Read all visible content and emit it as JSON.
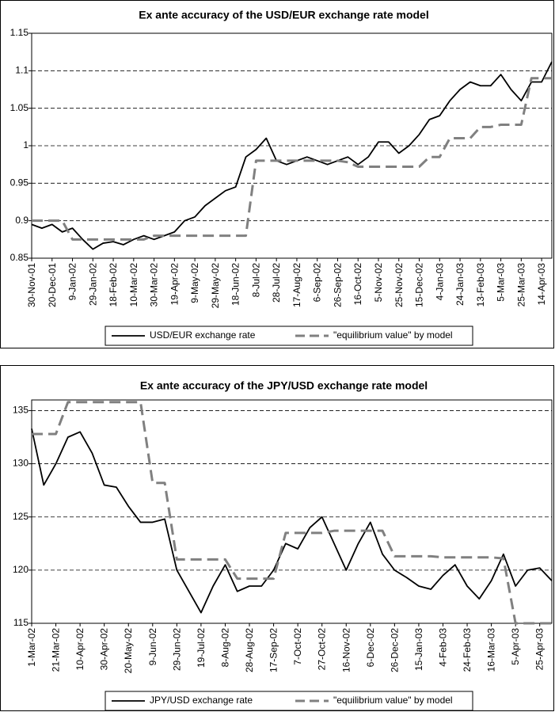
{
  "chart_data": [
    {
      "type": "line",
      "title": "Ex ante accuracy of the USD/EUR exchange rate model",
      "categories": [
        "30-Nov-01",
        null,
        "20-Dec-01",
        null,
        "9-Jan-02",
        null,
        "29-Jan-02",
        null,
        "18-Feb-02",
        null,
        "10-Mar-02",
        null,
        "30-Mar-02",
        null,
        "19-Apr-02",
        null,
        "9-May-02",
        null,
        "29-May-02",
        null,
        "18-Jun-02",
        null,
        "8-Jul-02",
        null,
        "28-Jul-02",
        null,
        "17-Aug-02",
        null,
        "6-Sep-02",
        null,
        "26-Sep-02",
        null,
        "16-Oct-02",
        null,
        "5-Nov-02",
        null,
        "25-Nov-02",
        null,
        "15-Dec-02",
        null,
        "4-Jan-03",
        null,
        "24-Jan-03",
        null,
        "13-Feb-03",
        null,
        "5-Mar-03",
        null,
        "25-Mar-03",
        null,
        "14-Apr-03",
        null
      ],
      "series": [
        {
          "name": "USD/EUR exchange rate",
          "color": "#000000",
          "dashed": false,
          "values": [
            0.895,
            0.89,
            0.895,
            0.885,
            0.89,
            0.875,
            0.862,
            0.87,
            0.872,
            0.868,
            0.875,
            0.88,
            0.875,
            0.88,
            0.885,
            0.9,
            0.905,
            0.92,
            0.93,
            0.94,
            0.945,
            0.985,
            0.995,
            1.01,
            0.98,
            0.975,
            0.98,
            0.985,
            0.98,
            0.975,
            0.98,
            0.985,
            0.975,
            0.985,
            1.005,
            1.005,
            0.99,
            1.0,
            1.015,
            1.035,
            1.04,
            1.06,
            1.075,
            1.085,
            1.08,
            1.08,
            1.095,
            1.075,
            1.06,
            1.085,
            1.085,
            1.112
          ]
        },
        {
          "name": "\"equilibrium value\" by model",
          "color": "#808080",
          "dashed": true,
          "values": [
            0.9,
            0.9,
            0.9,
            0.9,
            0.875,
            0.875,
            0.875,
            0.875,
            0.875,
            0.875,
            0.875,
            0.875,
            0.88,
            0.88,
            0.88,
            0.88,
            0.88,
            0.88,
            0.88,
            0.88,
            0.88,
            0.88,
            0.98,
            0.98,
            0.98,
            0.98,
            0.98,
            0.98,
            0.98,
            0.98,
            0.98,
            0.978,
            0.972,
            0.972,
            0.972,
            0.972,
            0.972,
            0.972,
            0.972,
            0.985,
            0.985,
            1.01,
            1.01,
            1.01,
            1.025,
            1.025,
            1.028,
            1.028,
            1.028,
            1.09,
            1.09,
            1.09
          ]
        }
      ],
      "ylim": [
        0.85,
        1.15
      ],
      "yticks": [
        0.85,
        0.9,
        0.95,
        1,
        1.05,
        1.1,
        1.15
      ],
      "grid": true,
      "legend": "bottom"
    },
    {
      "type": "line",
      "title": "Ex ante accuracy of the JPY/USD exchange rate model",
      "categories": [
        "1-Mar-02",
        null,
        "21-Mar-02",
        null,
        "10-Apr-02",
        null,
        "30-Apr-02",
        null,
        "20-May-02",
        null,
        "9-Jun-02",
        null,
        "29-Jun-02",
        null,
        "19-Jul-02",
        null,
        "8-Aug-02",
        null,
        "28-Aug-02",
        null,
        "17-Sep-02",
        null,
        "7-Oct-02",
        null,
        "27-Oct-02",
        null,
        "16-Nov-02",
        null,
        "6-Dec-02",
        null,
        "26-Dec-02",
        null,
        "15-Jan-03",
        null,
        "4-Feb-03",
        null,
        "24-Feb-03",
        null,
        "16-Mar-03",
        null,
        "5-Apr-03",
        null,
        "25-Apr-03",
        null
      ],
      "series": [
        {
          "name": "JPY/USD exchange rate",
          "color": "#000000",
          "dashed": false,
          "values": [
            133.3,
            128,
            130,
            132.5,
            133,
            131,
            128,
            127.8,
            126,
            124.5,
            124.5,
            124.8,
            120,
            118,
            116,
            118.5,
            120.5,
            118,
            118.5,
            118.5,
            120,
            122.5,
            122,
            124,
            125,
            122.5,
            120,
            122.5,
            124.5,
            121.5,
            120,
            119.3,
            118.5,
            118.2,
            119.5,
            120.5,
            118.5,
            117.3,
            119,
            121.5,
            118.5,
            120,
            120.2,
            119
          ]
        },
        {
          "name": "\"equilibrium value\" by model",
          "color": "#808080",
          "dashed": true,
          "values": [
            132.8,
            132.8,
            132.8,
            135.8,
            135.8,
            135.8,
            135.8,
            135.8,
            135.8,
            135.8,
            128.2,
            128.2,
            121,
            121,
            121,
            121,
            121,
            119.2,
            119.2,
            119.2,
            119.2,
            123.5,
            123.5,
            123.5,
            123.5,
            123.7,
            123.7,
            123.7,
            123.7,
            123.7,
            121.3,
            121.3,
            121.3,
            121.3,
            121.2,
            121.2,
            121.2,
            121.2,
            121.2,
            121.1,
            115,
            115,
            115,
            115
          ]
        }
      ],
      "ylim": [
        115,
        136
      ],
      "yticks": [
        115,
        120,
        125,
        130,
        135
      ],
      "grid": true,
      "legend": "bottom"
    }
  ]
}
